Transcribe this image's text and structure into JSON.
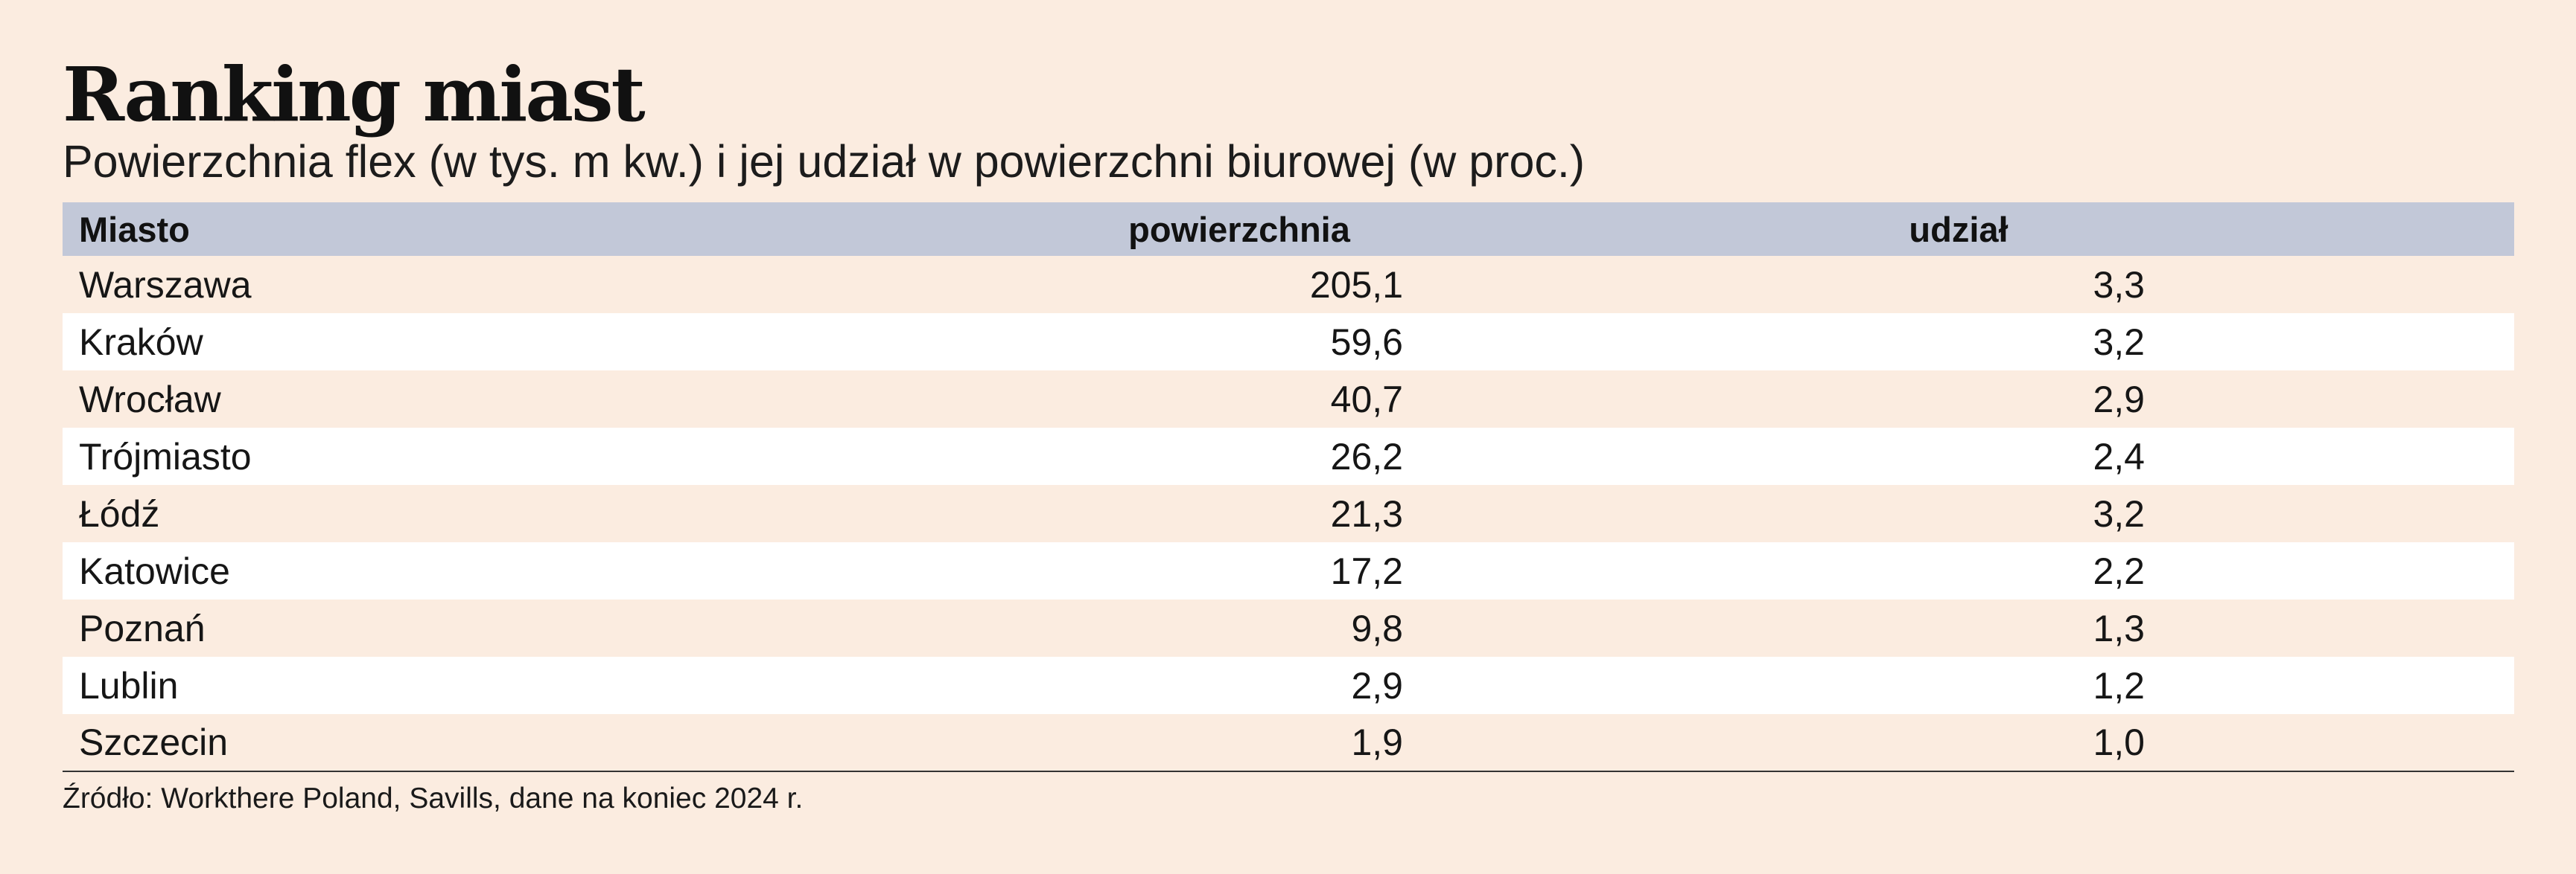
{
  "chart_data": {
    "type": "table",
    "title": "Ranking miast",
    "subtitle": "Powierzchnia flex (w tys. m kw.) i jej udział w powierzchni biurowej (w proc.)",
    "columns": [
      "Miasto",
      "powierzchnia",
      "udział"
    ],
    "rows": [
      {
        "city": "Warszawa",
        "area": "205,1",
        "share": "3,3"
      },
      {
        "city": "Kraków",
        "area": "59,6",
        "share": "3,2"
      },
      {
        "city": "Wrocław",
        "area": "40,7",
        "share": "2,9"
      },
      {
        "city": "Trójmiasto",
        "area": "26,2",
        "share": "2,4"
      },
      {
        "city": "Łódź",
        "area": "21,3",
        "share": "3,2"
      },
      {
        "city": "Katowice",
        "area": "17,2",
        "share": "2,2"
      },
      {
        "city": "Poznań",
        "area": "9,8",
        "share": "1,3"
      },
      {
        "city": "Lublin",
        "area": "2,9",
        "share": "1,2"
      },
      {
        "city": "Szczecin",
        "area": "1,9",
        "share": "1,0"
      }
    ],
    "source": "Źródło: Workthere Poland, Savills, dane na koniec 2024 r."
  },
  "colors": {
    "background": "#fbece0",
    "header_band": "#c2c8d8",
    "row_alt": "#ffffff",
    "text": "#111111"
  }
}
